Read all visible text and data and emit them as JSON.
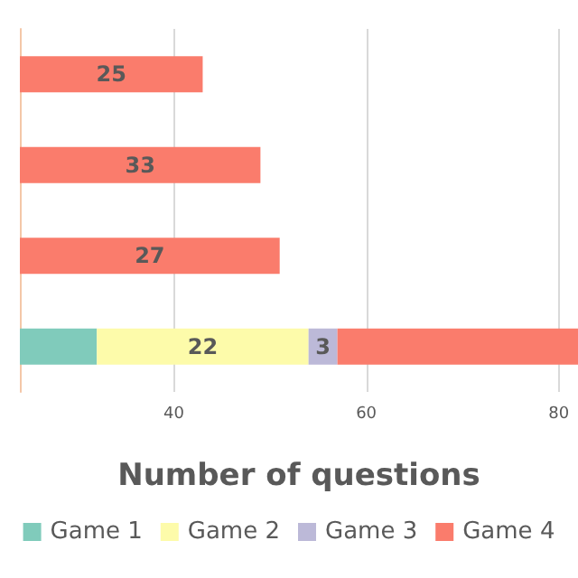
{
  "chart_data": {
    "type": "bar",
    "orientation": "horizontal",
    "categories": [
      null,
      null,
      null,
      null
    ],
    "series": [
      {
        "name": "Game 1",
        "color": "#80cbbb",
        "base": [
          null,
          null,
          null,
          24
        ],
        "values": [
          null,
          null,
          null,
          8
        ],
        "value_labels": [
          null,
          null,
          null,
          null
        ]
      },
      {
        "name": "Game 2",
        "color": "#fdfbaa",
        "base": [
          null,
          null,
          null,
          32
        ],
        "values": [
          null,
          null,
          null,
          22
        ],
        "value_labels": [
          null,
          null,
          null,
          "22"
        ]
      },
      {
        "name": "Game 3",
        "color": "#bcb9d8",
        "base": [
          null,
          null,
          null,
          54
        ],
        "values": [
          null,
          null,
          null,
          3
        ],
        "value_labels": [
          null,
          null,
          null,
          "3"
        ]
      },
      {
        "name": "Game 4",
        "color": "#fa7c6c",
        "base": [
          18,
          16,
          24,
          57
        ],
        "values": [
          25,
          33,
          27,
          25
        ],
        "value_labels": [
          "25",
          "33",
          "27",
          null
        ]
      }
    ],
    "xlabel": "Number of questions",
    "xlim": [
      24,
      82
    ],
    "xticks": [
      40,
      60,
      80
    ],
    "grid": "x",
    "legend": "bottom"
  }
}
